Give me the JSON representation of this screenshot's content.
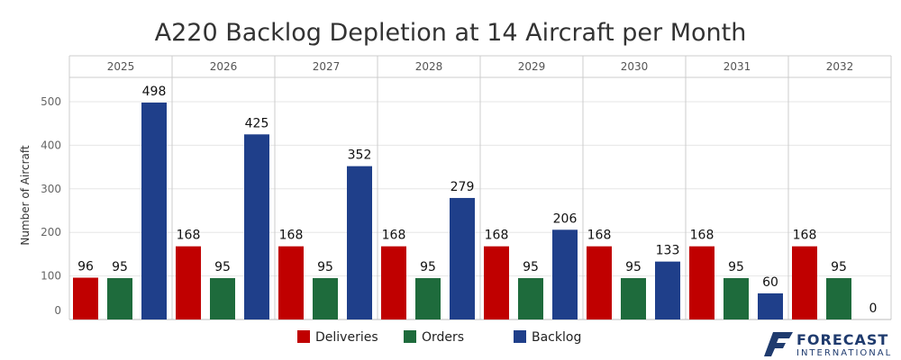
{
  "chart_data": {
    "type": "bar",
    "title": "A220 Backlog Depletion at 14 Aircraft per Month",
    "ylabel": "Number of Aircraft",
    "xlabel": "",
    "categories": [
      "2025",
      "2026",
      "2027",
      "2028",
      "2029",
      "2030",
      "2031",
      "2032"
    ],
    "ylim": [
      0,
      560
    ],
    "yticks": [
      0,
      100,
      200,
      300,
      400,
      500
    ],
    "grid": true,
    "legend_position": "bottom",
    "series": [
      {
        "name": "Deliveries",
        "color": "#c00000",
        "values": [
          96,
          168,
          168,
          168,
          168,
          168,
          168,
          168
        ]
      },
      {
        "name": "Orders",
        "color": "#1e6b3c",
        "values": [
          95,
          95,
          95,
          95,
          95,
          95,
          95,
          95
        ]
      },
      {
        "name": "Backlog",
        "color": "#1f3f8a",
        "values": [
          498,
          425,
          352,
          279,
          206,
          133,
          60,
          0
        ]
      }
    ]
  },
  "logo": {
    "main": "FORECAST",
    "sub": "INTERNATIONAL",
    "icon": "forecast-international-flag-icon"
  }
}
